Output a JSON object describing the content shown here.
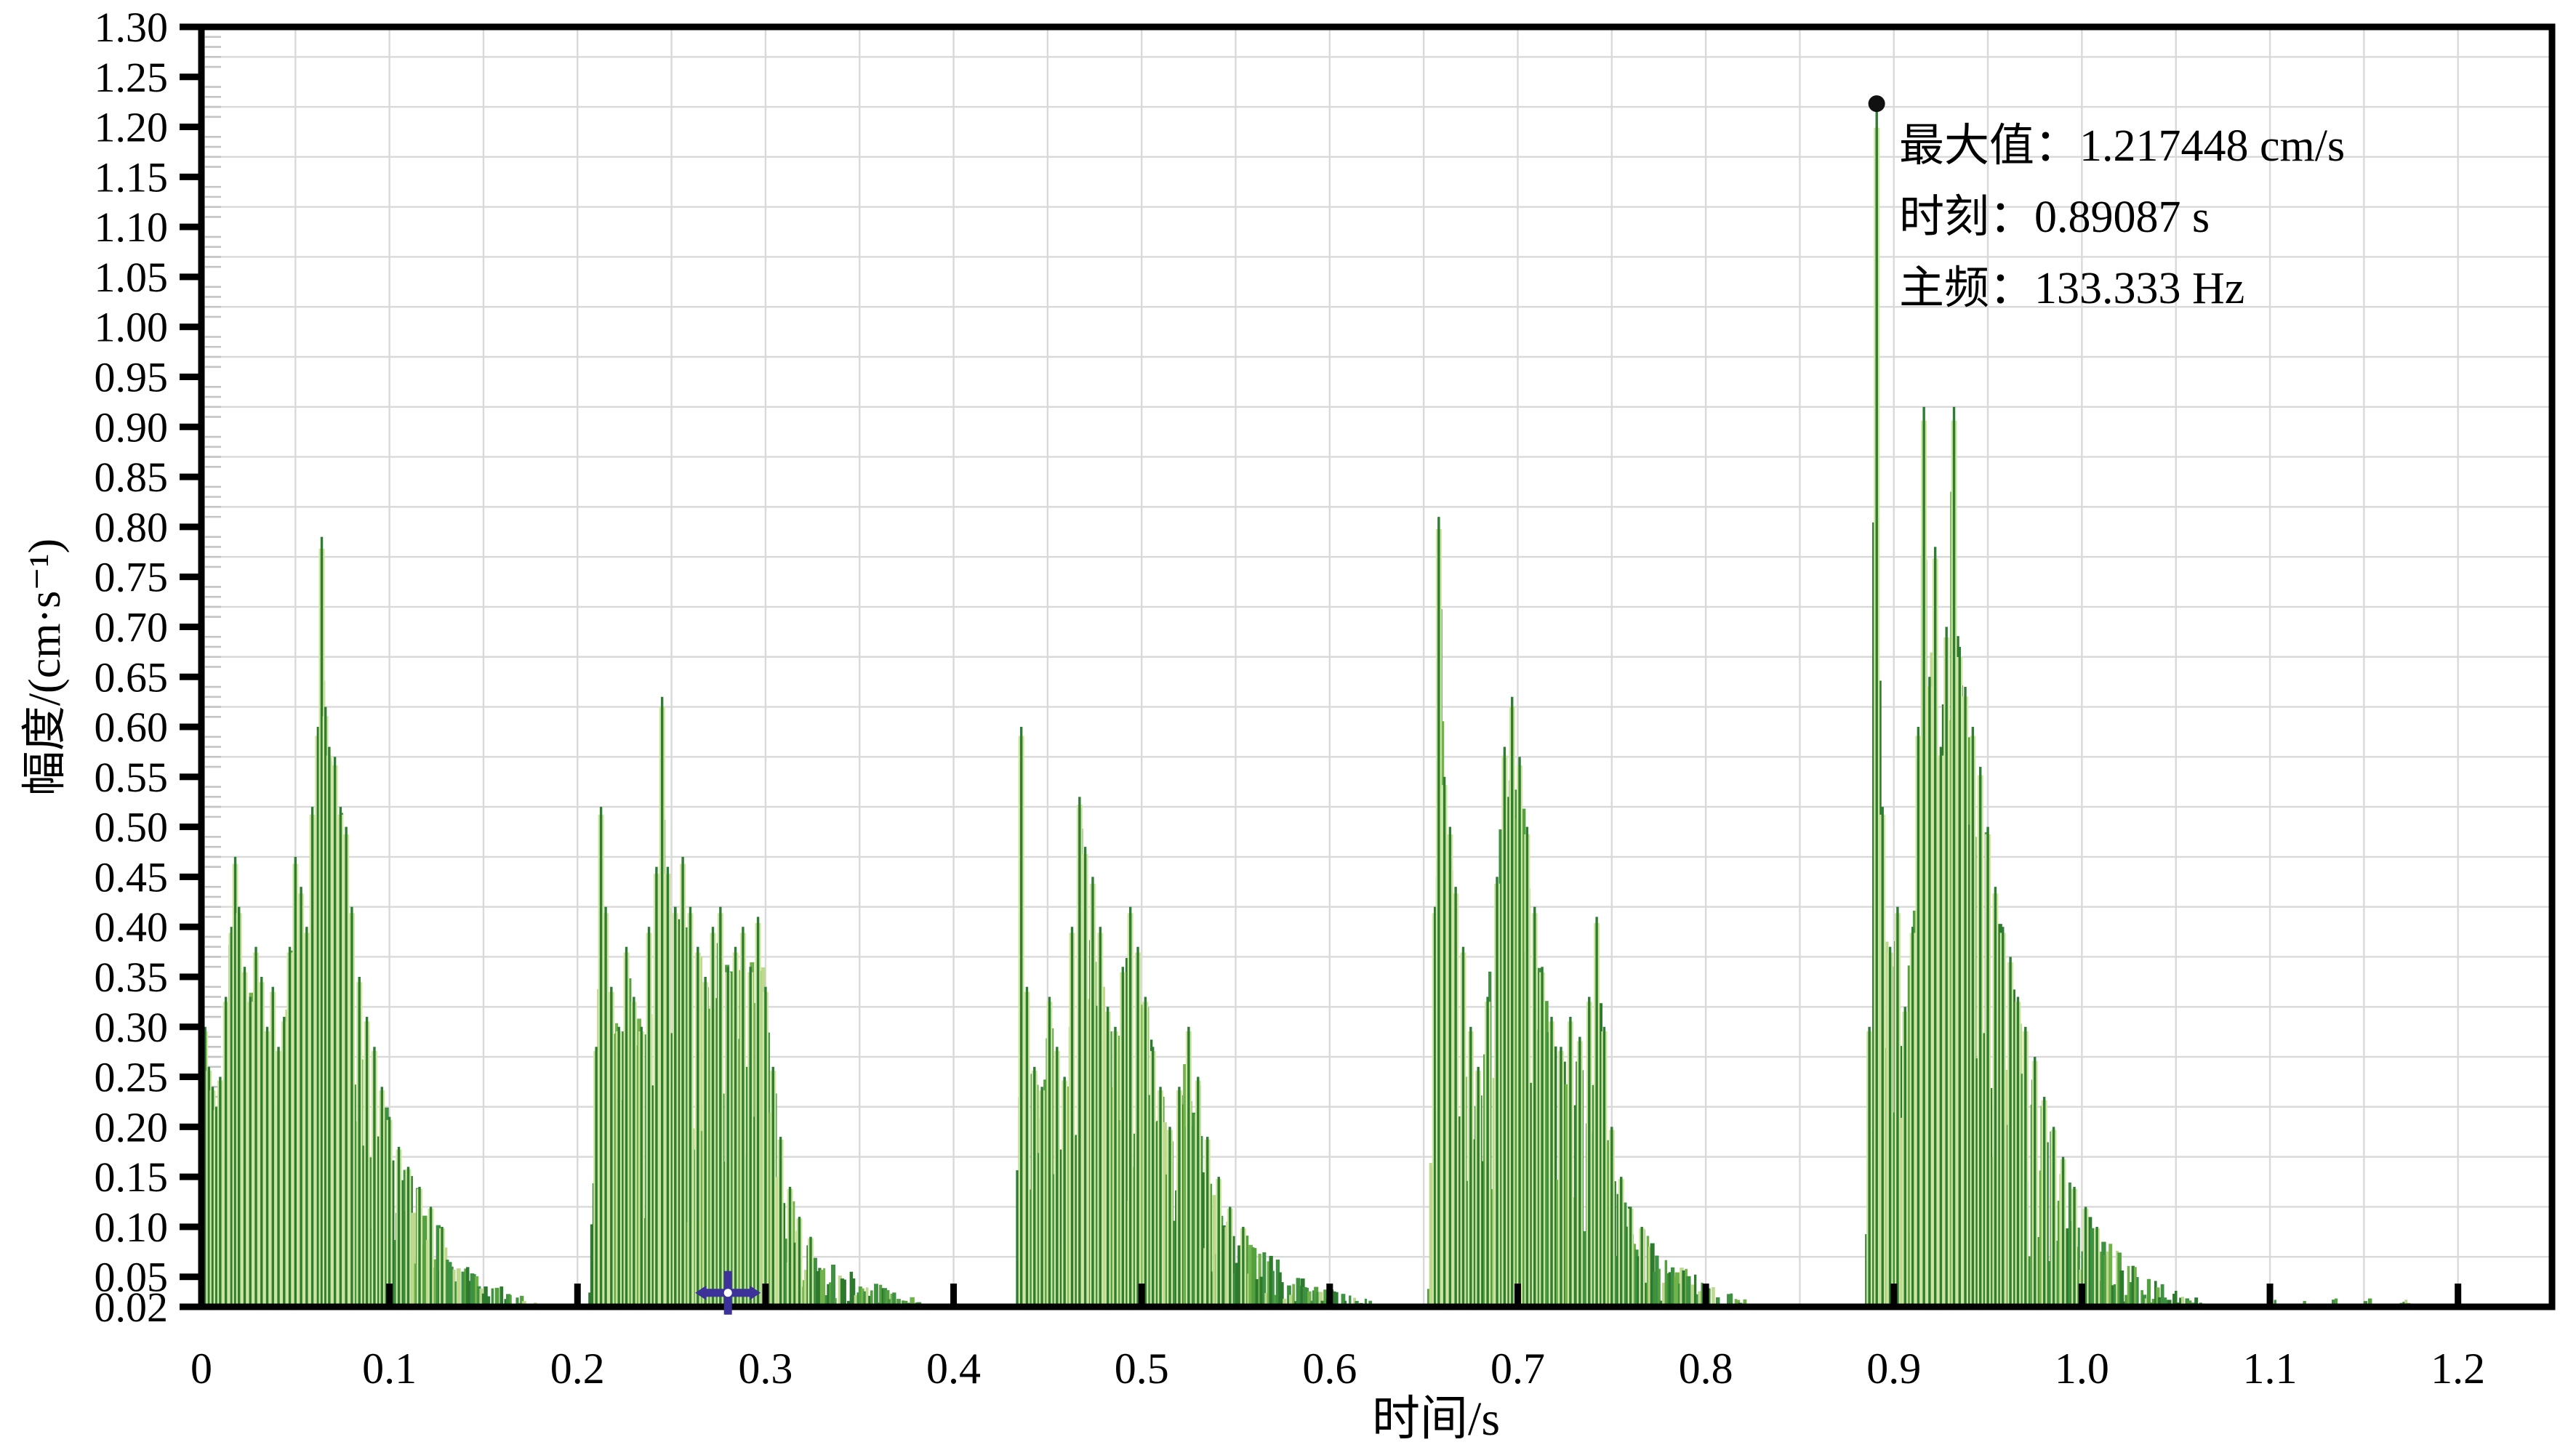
{
  "figure": {
    "background_color": "#ffffff",
    "axis_color": "#000000",
    "grid_color": "#d9d9d9",
    "minor_tick_color": "#c4c4c4",
    "annotation": {
      "max_line": "最大值：1.217448 cm/s",
      "time_line": "时刻：0.89087 s",
      "freq_line": "主频：133.333 Hz"
    },
    "cursor_color": "#3c3299",
    "peak_marker_color": "#111111"
  },
  "chart_data": {
    "type": "line",
    "xlabel": "时间/s",
    "ylabel": "幅度/(cm·s⁻¹)",
    "xlim": [
      0,
      1.25
    ],
    "ylim": [
      0.02,
      1.3
    ],
    "grid": "on",
    "grid_step": 0.05,
    "y_minor_step": 0.01,
    "x_ticks": [
      0,
      0.1,
      0.2,
      0.3,
      0.4,
      0.5,
      0.6,
      0.7,
      0.8,
      0.9,
      1.0,
      1.1,
      1.2
    ],
    "x_tick_labels": [
      "0",
      "0.1",
      "0.2",
      "0.3",
      "0.4",
      "0.5",
      "0.6",
      "0.7",
      "0.8",
      "0.9",
      "1.0",
      "1.1",
      "1.2"
    ],
    "y_ticks": [
      0.02,
      0.05,
      0.1,
      0.15,
      0.2,
      0.25,
      0.3,
      0.35,
      0.4,
      0.45,
      0.5,
      0.55,
      0.6,
      0.65,
      0.7,
      0.75,
      0.8,
      0.85,
      0.9,
      0.95,
      1.0,
      1.05,
      1.1,
      1.15,
      1.2,
      1.25,
      1.3
    ],
    "y_tick_labels": [
      "0.02",
      "0.05",
      "0.10",
      "0.15",
      "0.20",
      "0.25",
      "0.30",
      "0.35",
      "0.40",
      "0.45",
      "0.50",
      "0.55",
      "0.60",
      "0.65",
      "0.70",
      "0.75",
      "0.80",
      "0.85",
      "0.90",
      "0.95",
      "1.00",
      "1.05",
      "1.10",
      "1.15",
      "1.20",
      "1.25",
      "1.30"
    ],
    "peak_marker": {
      "t": 0.89087,
      "value": 1.217448
    },
    "dominant_frequency_hz": 133.333,
    "cursor_marker": {
      "t": 0.28,
      "value": 0.034
    },
    "series_palette": [
      "#2d7a2e",
      "#3f9142",
      "#52a03e",
      "#72b24a",
      "#bcd98e"
    ],
    "series_halo_color": "#cfe6a0",
    "series_peak_color": "#2e7d30",
    "envelope": [
      [
        0.0,
        0.02
      ],
      [
        0.002,
        0.3
      ],
      [
        0.004,
        0.26
      ],
      [
        0.006,
        0.24
      ],
      [
        0.008,
        0.22
      ],
      [
        0.01,
        0.25
      ],
      [
        0.013,
        0.33
      ],
      [
        0.016,
        0.4
      ],
      [
        0.018,
        0.47
      ],
      [
        0.02,
        0.42
      ],
      [
        0.023,
        0.36
      ],
      [
        0.026,
        0.33
      ],
      [
        0.029,
        0.38
      ],
      [
        0.032,
        0.35
      ],
      [
        0.035,
        0.3
      ],
      [
        0.038,
        0.34
      ],
      [
        0.041,
        0.28
      ],
      [
        0.044,
        0.31
      ],
      [
        0.047,
        0.38
      ],
      [
        0.05,
        0.47
      ],
      [
        0.053,
        0.44
      ],
      [
        0.056,
        0.4
      ],
      [
        0.059,
        0.52
      ],
      [
        0.062,
        0.6
      ],
      [
        0.064,
        0.79
      ],
      [
        0.066,
        0.62
      ],
      [
        0.068,
        0.58
      ],
      [
        0.071,
        0.57
      ],
      [
        0.074,
        0.52
      ],
      [
        0.077,
        0.5
      ],
      [
        0.08,
        0.42
      ],
      [
        0.084,
        0.35
      ],
      [
        0.088,
        0.31
      ],
      [
        0.092,
        0.28
      ],
      [
        0.096,
        0.24
      ],
      [
        0.1,
        0.21
      ],
      [
        0.105,
        0.18
      ],
      [
        0.11,
        0.16
      ],
      [
        0.116,
        0.14
      ],
      [
        0.122,
        0.12
      ],
      [
        0.128,
        0.1
      ],
      [
        0.135,
        0.08
      ],
      [
        0.142,
        0.065
      ],
      [
        0.15,
        0.05
      ],
      [
        0.158,
        0.042
      ],
      [
        0.166,
        0.035
      ],
      [
        0.174,
        0.028
      ],
      [
        0.182,
        0.02
      ],
      [
        0.19,
        0.013
      ],
      [
        0.198,
        0.008
      ],
      [
        0.206,
        0.01
      ],
      [
        0.21,
        0.28
      ],
      [
        0.2125,
        0.52
      ],
      [
        0.215,
        0.42
      ],
      [
        0.218,
        0.34
      ],
      [
        0.222,
        0.3
      ],
      [
        0.226,
        0.38
      ],
      [
        0.23,
        0.33
      ],
      [
        0.234,
        0.3
      ],
      [
        0.238,
        0.4
      ],
      [
        0.242,
        0.46
      ],
      [
        0.245,
        0.63
      ],
      [
        0.248,
        0.46
      ],
      [
        0.252,
        0.42
      ],
      [
        0.256,
        0.47
      ],
      [
        0.26,
        0.42
      ],
      [
        0.264,
        0.38
      ],
      [
        0.268,
        0.35
      ],
      [
        0.272,
        0.4
      ],
      [
        0.276,
        0.42
      ],
      [
        0.28,
        0.36
      ],
      [
        0.284,
        0.38
      ],
      [
        0.288,
        0.4
      ],
      [
        0.292,
        0.36
      ],
      [
        0.296,
        0.41
      ],
      [
        0.3,
        0.34
      ],
      [
        0.304,
        0.26
      ],
      [
        0.308,
        0.19
      ],
      [
        0.313,
        0.14
      ],
      [
        0.318,
        0.11
      ],
      [
        0.324,
        0.09
      ],
      [
        0.33,
        0.075
      ],
      [
        0.338,
        0.06
      ],
      [
        0.346,
        0.055
      ],
      [
        0.355,
        0.05
      ],
      [
        0.365,
        0.04
      ],
      [
        0.375,
        0.032
      ],
      [
        0.385,
        0.025
      ],
      [
        0.395,
        0.018
      ],
      [
        0.405,
        0.012
      ],
      [
        0.415,
        0.008
      ],
      [
        0.425,
        0.006
      ],
      [
        0.433,
        0.02
      ],
      [
        0.436,
        0.6
      ],
      [
        0.439,
        0.34
      ],
      [
        0.443,
        0.26
      ],
      [
        0.447,
        0.24
      ],
      [
        0.451,
        0.33
      ],
      [
        0.455,
        0.28
      ],
      [
        0.459,
        0.25
      ],
      [
        0.463,
        0.4
      ],
      [
        0.467,
        0.53
      ],
      [
        0.47,
        0.48
      ],
      [
        0.474,
        0.45
      ],
      [
        0.478,
        0.4
      ],
      [
        0.482,
        0.32
      ],
      [
        0.486,
        0.3
      ],
      [
        0.49,
        0.36
      ],
      [
        0.494,
        0.42
      ],
      [
        0.498,
        0.38
      ],
      [
        0.502,
        0.33
      ],
      [
        0.506,
        0.28
      ],
      [
        0.51,
        0.24
      ],
      [
        0.515,
        0.2
      ],
      [
        0.52,
        0.24
      ],
      [
        0.525,
        0.3
      ],
      [
        0.53,
        0.25
      ],
      [
        0.535,
        0.19
      ],
      [
        0.541,
        0.15
      ],
      [
        0.547,
        0.12
      ],
      [
        0.554,
        0.1
      ],
      [
        0.562,
        0.085
      ],
      [
        0.57,
        0.07
      ],
      [
        0.579,
        0.06
      ],
      [
        0.588,
        0.05
      ],
      [
        0.598,
        0.042
      ],
      [
        0.609,
        0.035
      ],
      [
        0.62,
        0.028
      ],
      [
        0.632,
        0.02
      ],
      [
        0.644,
        0.012
      ],
      [
        0.652,
        0.01
      ],
      [
        0.656,
        0.42
      ],
      [
        0.658,
        0.81
      ],
      [
        0.661,
        0.55
      ],
      [
        0.664,
        0.5
      ],
      [
        0.667,
        0.44
      ],
      [
        0.671,
        0.38
      ],
      [
        0.675,
        0.3
      ],
      [
        0.679,
        0.26
      ],
      [
        0.684,
        0.33
      ],
      [
        0.689,
        0.45
      ],
      [
        0.693,
        0.58
      ],
      [
        0.697,
        0.63
      ],
      [
        0.701,
        0.57
      ],
      [
        0.705,
        0.5
      ],
      [
        0.709,
        0.42
      ],
      [
        0.713,
        0.36
      ],
      [
        0.718,
        0.31
      ],
      [
        0.723,
        0.28
      ],
      [
        0.728,
        0.31
      ],
      [
        0.733,
        0.29
      ],
      [
        0.738,
        0.33
      ],
      [
        0.742,
        0.41
      ],
      [
        0.746,
        0.3
      ],
      [
        0.75,
        0.2
      ],
      [
        0.755,
        0.15
      ],
      [
        0.76,
        0.12
      ],
      [
        0.766,
        0.1
      ],
      [
        0.773,
        0.085
      ],
      [
        0.78,
        0.07
      ],
      [
        0.788,
        0.06
      ],
      [
        0.797,
        0.05
      ],
      [
        0.807,
        0.04
      ],
      [
        0.818,
        0.03
      ],
      [
        0.83,
        0.022
      ],
      [
        0.843,
        0.015
      ],
      [
        0.857,
        0.01
      ],
      [
        0.872,
        0.007
      ],
      [
        0.884,
        0.01
      ],
      [
        0.887,
        0.3
      ],
      [
        0.8909,
        1.2174
      ],
      [
        0.894,
        0.52
      ],
      [
        0.898,
        0.38
      ],
      [
        0.902,
        0.42
      ],
      [
        0.906,
        0.32
      ],
      [
        0.91,
        0.4
      ],
      [
        0.913,
        0.6
      ],
      [
        0.916,
        0.92
      ],
      [
        0.919,
        0.65
      ],
      [
        0.922,
        0.78
      ],
      [
        0.925,
        0.58
      ],
      [
        0.928,
        0.7
      ],
      [
        0.932,
        0.92
      ],
      [
        0.935,
        0.68
      ],
      [
        0.938,
        0.64
      ],
      [
        0.942,
        0.6
      ],
      [
        0.946,
        0.56
      ],
      [
        0.95,
        0.5
      ],
      [
        0.954,
        0.44
      ],
      [
        0.958,
        0.4
      ],
      [
        0.962,
        0.37
      ],
      [
        0.966,
        0.33
      ],
      [
        0.97,
        0.3
      ],
      [
        0.975,
        0.27
      ],
      [
        0.98,
        0.23
      ],
      [
        0.985,
        0.2
      ],
      [
        0.99,
        0.17
      ],
      [
        0.996,
        0.14
      ],
      [
        1.002,
        0.12
      ],
      [
        1.008,
        0.1
      ],
      [
        1.015,
        0.085
      ],
      [
        1.022,
        0.07
      ],
      [
        1.03,
        0.058
      ],
      [
        1.04,
        0.048
      ],
      [
        1.05,
        0.04
      ],
      [
        1.06,
        0.032
      ],
      [
        1.072,
        0.025
      ],
      [
        1.085,
        0.015
      ],
      [
        1.095,
        0.008
      ],
      [
        1.103,
        0.03
      ],
      [
        1.11,
        0.01
      ],
      [
        1.118,
        0.028
      ],
      [
        1.126,
        0.01
      ],
      [
        1.135,
        0.03
      ],
      [
        1.144,
        0.01
      ],
      [
        1.153,
        0.032
      ],
      [
        1.162,
        0.01
      ],
      [
        1.172,
        0.028
      ],
      [
        1.182,
        0.008
      ],
      [
        1.192,
        0.022
      ],
      [
        1.203,
        0.008
      ],
      [
        1.215,
        0.012
      ],
      [
        1.228,
        0.006
      ],
      [
        1.24,
        0.005
      ],
      [
        1.25,
        0.005
      ]
    ]
  }
}
